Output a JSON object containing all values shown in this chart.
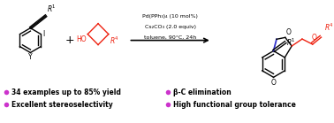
{
  "bg_color": "#ffffff",
  "bullet_color": "#CC33CC",
  "text_color": "#000000",
  "red_color": "#EE2211",
  "blue_color": "#3333CC",
  "bullet_items_left": [
    "34 examples up to 85% yield",
    "Excellent stereoselectivity"
  ],
  "bullet_items_right": [
    "β-C elimination",
    "High functional group tolerance"
  ],
  "conditions_lines": [
    "Pd(PPh₃)₄ (10 mol%)",
    "Cs₂CO₃ (2.0 equiv)",
    "toluene, 90°C, 24h"
  ],
  "figsize": [
    3.78,
    1.39
  ],
  "dpi": 100
}
